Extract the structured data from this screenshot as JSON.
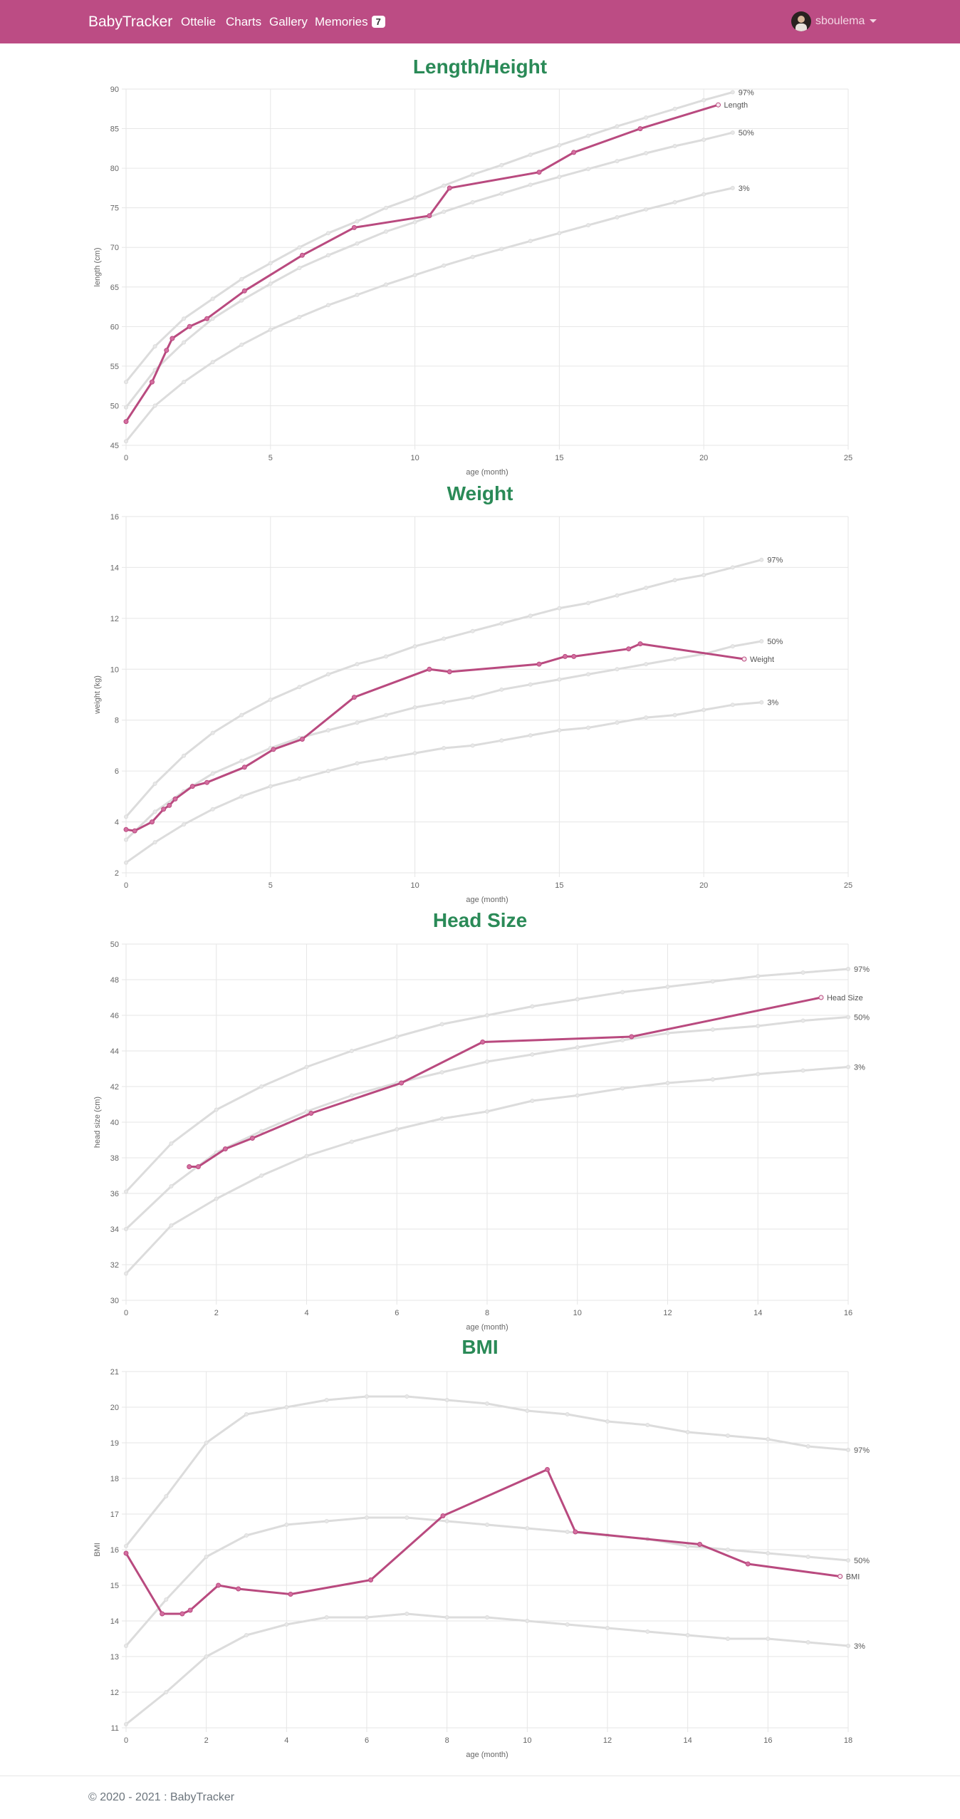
{
  "nav": {
    "brand": "BabyTracker",
    "links": [
      "Ottelie",
      "Charts",
      "Gallery",
      "Memories"
    ],
    "memories_badge": "7",
    "user": "sboulema",
    "color": "#bc4c84"
  },
  "footer": {
    "text": "© 2020 - 2021 : BabyTracker"
  },
  "colors": {
    "series": "#b94a7f",
    "percentile": "#dcdcdc",
    "title": "#2a8a57",
    "grid": "#e6e6e6"
  },
  "chart_data": [
    {
      "type": "line",
      "title": "Length/Height",
      "xlabel": "age (month)",
      "ylabel": "length (cm)",
      "xlim": [
        0,
        25
      ],
      "ylim": [
        45,
        90
      ],
      "xticks": [
        0,
        5,
        10,
        15,
        20,
        25
      ],
      "yticks": [
        45,
        50,
        55,
        60,
        65,
        70,
        75,
        80,
        85,
        90
      ],
      "grid": true,
      "series": [
        {
          "name": "97%",
          "role": "percentile",
          "x": [
            0,
            1,
            2,
            3,
            4,
            5,
            6,
            7,
            8,
            9,
            10,
            11,
            12,
            13,
            14,
            15,
            16,
            17,
            18,
            19,
            20,
            21
          ],
          "y": [
            53,
            57.5,
            61,
            63.5,
            66,
            68,
            70,
            71.8,
            73.3,
            75,
            76.3,
            77.8,
            79.2,
            80.4,
            81.7,
            82.9,
            84.1,
            85.3,
            86.4,
            87.5,
            88.6,
            89.6
          ]
        },
        {
          "name": "50%",
          "role": "percentile",
          "x": [
            0,
            1,
            2,
            3,
            4,
            5,
            6,
            7,
            8,
            9,
            10,
            11,
            12,
            13,
            14,
            15,
            16,
            17,
            18,
            19,
            20,
            21
          ],
          "y": [
            49.8,
            54.5,
            58,
            61,
            63.3,
            65.4,
            67.4,
            69,
            70.5,
            72,
            73.2,
            74.5,
            75.7,
            76.8,
            77.9,
            78.9,
            79.9,
            80.9,
            81.9,
            82.8,
            83.6,
            84.5
          ]
        },
        {
          "name": "3%",
          "role": "percentile",
          "x": [
            0,
            1,
            2,
            3,
            4,
            5,
            6,
            7,
            8,
            9,
            10,
            11,
            12,
            13,
            14,
            15,
            16,
            17,
            18,
            19,
            20,
            21
          ],
          "y": [
            45.5,
            50,
            53,
            55.5,
            57.7,
            59.6,
            61.2,
            62.7,
            64,
            65.3,
            66.5,
            67.7,
            68.8,
            69.8,
            70.8,
            71.8,
            72.8,
            73.8,
            74.8,
            75.7,
            76.7,
            77.5
          ]
        },
        {
          "name": "Length",
          "role": "value",
          "x": [
            0,
            0.9,
            1.4,
            1.6,
            2.2,
            2.8,
            4.1,
            6.1,
            7.9,
            10.5,
            11.2,
            14.3,
            15.5,
            17.8,
            20.5
          ],
          "y": [
            48,
            53,
            57,
            58.5,
            60,
            61,
            64.5,
            69,
            72.5,
            74,
            77.5,
            79.5,
            82,
            85,
            88
          ]
        }
      ]
    },
    {
      "type": "line",
      "title": "Weight",
      "xlabel": "age (month)",
      "ylabel": "weight (kg)",
      "xlim": [
        0,
        25
      ],
      "ylim": [
        2,
        16
      ],
      "xticks": [
        0,
        5,
        10,
        15,
        20,
        25
      ],
      "yticks": [
        2,
        4,
        6,
        8,
        10,
        12,
        14,
        16
      ],
      "grid": true,
      "series": [
        {
          "name": "97%",
          "role": "percentile",
          "x": [
            0,
            1,
            2,
            3,
            4,
            5,
            6,
            7,
            8,
            9,
            10,
            11,
            12,
            13,
            14,
            15,
            16,
            17,
            18,
            19,
            20,
            21,
            22
          ],
          "y": [
            4.2,
            5.5,
            6.6,
            7.5,
            8.2,
            8.8,
            9.3,
            9.8,
            10.2,
            10.5,
            10.9,
            11.2,
            11.5,
            11.8,
            12.1,
            12.4,
            12.6,
            12.9,
            13.2,
            13.5,
            13.7,
            14,
            14.3
          ]
        },
        {
          "name": "50%",
          "role": "percentile",
          "x": [
            0,
            1,
            2,
            3,
            4,
            5,
            6,
            7,
            8,
            9,
            10,
            11,
            12,
            13,
            14,
            15,
            16,
            17,
            18,
            19,
            20,
            21,
            22
          ],
          "y": [
            3.3,
            4.4,
            5.2,
            5.9,
            6.4,
            6.9,
            7.3,
            7.6,
            7.9,
            8.2,
            8.5,
            8.7,
            8.9,
            9.2,
            9.4,
            9.6,
            9.8,
            10,
            10.2,
            10.4,
            10.6,
            10.9,
            11.1
          ]
        },
        {
          "name": "3%",
          "role": "percentile",
          "x": [
            0,
            1,
            2,
            3,
            4,
            5,
            6,
            7,
            8,
            9,
            10,
            11,
            12,
            13,
            14,
            15,
            16,
            17,
            18,
            19,
            20,
            21,
            22
          ],
          "y": [
            2.4,
            3.2,
            3.9,
            4.5,
            5,
            5.4,
            5.7,
            6,
            6.3,
            6.5,
            6.7,
            6.9,
            7,
            7.2,
            7.4,
            7.6,
            7.7,
            7.9,
            8.1,
            8.2,
            8.4,
            8.6,
            8.7
          ]
        },
        {
          "name": "Weight",
          "role": "value",
          "x": [
            0,
            0.3,
            0.9,
            1.3,
            1.5,
            1.7,
            2.3,
            2.8,
            4.1,
            5.1,
            6.1,
            7.9,
            10.5,
            11.2,
            14.3,
            15.2,
            15.5,
            17.4,
            17.8,
            21.4
          ],
          "y": [
            3.7,
            3.65,
            4,
            4.5,
            4.65,
            4.9,
            5.4,
            5.55,
            6.15,
            6.85,
            7.25,
            8.9,
            10,
            9.9,
            10.2,
            10.5,
            10.5,
            10.8,
            11,
            10.4
          ]
        }
      ]
    },
    {
      "type": "line",
      "title": "Head Size",
      "xlabel": "age (month)",
      "ylabel": "head size (cm)",
      "xlim": [
        0,
        16
      ],
      "ylim": [
        30,
        50
      ],
      "xticks": [
        0,
        2,
        4,
        6,
        8,
        10,
        12,
        14,
        16
      ],
      "yticks": [
        30,
        32,
        34,
        36,
        38,
        40,
        42,
        44,
        46,
        48,
        50
      ],
      "grid": true,
      "series": [
        {
          "name": "97%",
          "role": "percentile",
          "x": [
            0,
            1,
            2,
            3,
            4,
            5,
            6,
            7,
            8,
            9,
            10,
            11,
            12,
            13,
            14,
            15,
            16
          ],
          "y": [
            36.1,
            38.8,
            40.7,
            42,
            43.1,
            44,
            44.8,
            45.5,
            46,
            46.5,
            46.9,
            47.3,
            47.6,
            47.9,
            48.2,
            48.4,
            48.6
          ]
        },
        {
          "name": "50%",
          "role": "percentile",
          "x": [
            0,
            1,
            2,
            3,
            4,
            5,
            6,
            7,
            8,
            9,
            10,
            11,
            12,
            13,
            14,
            15,
            16
          ],
          "y": [
            34,
            36.4,
            38.3,
            39.5,
            40.6,
            41.5,
            42.2,
            42.8,
            43.4,
            43.8,
            44.2,
            44.6,
            45,
            45.2,
            45.4,
            45.7,
            45.9
          ]
        },
        {
          "name": "3%",
          "role": "percentile",
          "x": [
            0,
            1,
            2,
            3,
            4,
            5,
            6,
            7,
            8,
            9,
            10,
            11,
            12,
            13,
            14,
            15,
            16
          ],
          "y": [
            31.5,
            34.2,
            35.7,
            37,
            38.1,
            38.9,
            39.6,
            40.2,
            40.6,
            41.2,
            41.5,
            41.9,
            42.2,
            42.4,
            42.7,
            42.9,
            43.1
          ]
        },
        {
          "name": "Head Size",
          "role": "value",
          "x": [
            1.4,
            1.6,
            2.2,
            2.8,
            4.1,
            6.1,
            7.9,
            11.2,
            15.4
          ],
          "y": [
            37.5,
            37.5,
            38.5,
            39.1,
            40.5,
            42.2,
            44.5,
            44.8,
            47
          ]
        }
      ]
    },
    {
      "type": "line",
      "title": "BMI",
      "xlabel": "age (month)",
      "ylabel": "BMI",
      "xlim": [
        0,
        18
      ],
      "ylim": [
        11,
        21
      ],
      "xticks": [
        0,
        2,
        4,
        6,
        8,
        10,
        12,
        14,
        16,
        18
      ],
      "yticks": [
        11,
        12,
        13,
        14,
        15,
        16,
        17,
        18,
        19,
        20,
        21
      ],
      "grid": true,
      "series": [
        {
          "name": "97%",
          "role": "percentile",
          "x": [
            0,
            1,
            2,
            3,
            4,
            5,
            6,
            7,
            8,
            9,
            10,
            11,
            12,
            13,
            14,
            15,
            16,
            17,
            18
          ],
          "y": [
            16.1,
            17.5,
            19,
            19.8,
            20,
            20.2,
            20.3,
            20.3,
            20.2,
            20.1,
            19.9,
            19.8,
            19.6,
            19.5,
            19.3,
            19.2,
            19.1,
            18.9,
            18.8
          ]
        },
        {
          "name": "50%",
          "role": "percentile",
          "x": [
            0,
            1,
            2,
            3,
            4,
            5,
            6,
            7,
            8,
            9,
            10,
            11,
            12,
            13,
            14,
            15,
            16,
            17,
            18
          ],
          "y": [
            13.3,
            14.6,
            15.8,
            16.4,
            16.7,
            16.8,
            16.9,
            16.9,
            16.8,
            16.7,
            16.6,
            16.5,
            16.4,
            16.3,
            16.1,
            16,
            15.9,
            15.8,
            15.7
          ]
        },
        {
          "name": "3%",
          "role": "percentile",
          "x": [
            0,
            1,
            2,
            3,
            4,
            5,
            6,
            7,
            8,
            9,
            10,
            11,
            12,
            13,
            14,
            15,
            16,
            17,
            18
          ],
          "y": [
            11.1,
            12,
            13,
            13.6,
            13.9,
            14.1,
            14.1,
            14.2,
            14.1,
            14.1,
            14,
            13.9,
            13.8,
            13.7,
            13.6,
            13.5,
            13.5,
            13.4,
            13.3
          ]
        },
        {
          "name": "BMI",
          "role": "value",
          "x": [
            0,
            0.9,
            1.4,
            1.6,
            2.3,
            2.8,
            4.1,
            6.1,
            7.9,
            10.5,
            11.2,
            14.3,
            15.5,
            17.8
          ],
          "y": [
            15.9,
            14.2,
            14.2,
            14.3,
            15,
            14.9,
            14.75,
            15.15,
            16.95,
            18.25,
            16.5,
            16.15,
            15.6,
            15.25
          ]
        }
      ]
    }
  ]
}
